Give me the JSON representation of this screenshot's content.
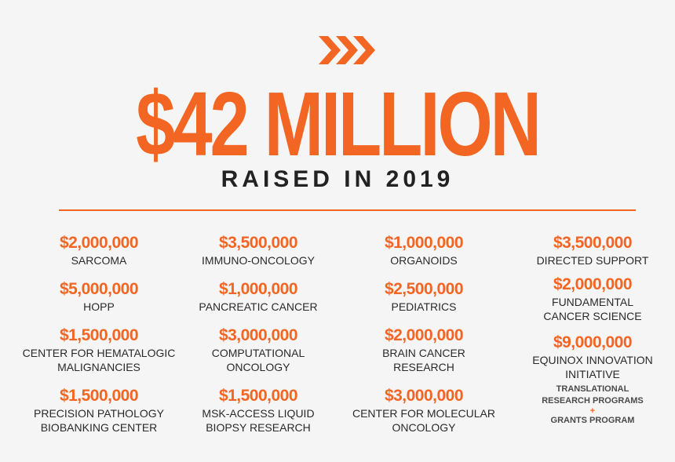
{
  "header": {
    "headline": "$42 MILLION",
    "subheadline": "RAISED IN 2019",
    "accent_color": "#f26522"
  },
  "columns": [
    [
      {
        "amount": "$2,000,000",
        "label": "SARCOMA"
      },
      {
        "amount": "$5,000,000",
        "label": "HOPP"
      },
      {
        "amount": "$1,500,000",
        "label_lines": [
          "CENTER FOR HEMATALOGIC",
          "MALIGNANCIES"
        ]
      },
      {
        "amount": "$1,500,000",
        "label_lines": [
          "PRECISION PATHOLOGY",
          "BIOBANKING CENTER"
        ]
      }
    ],
    [
      {
        "amount": "$3,500,000",
        "label": "IMMUNO-ONCOLOGY"
      },
      {
        "amount": "$1,000,000",
        "label": "PANCREATIC CANCER"
      },
      {
        "amount": "$3,000,000",
        "label_lines": [
          "COMPUTATIONAL",
          "ONCOLOGY"
        ]
      },
      {
        "amount": "$1,500,000",
        "label_lines": [
          "MSK-ACCESS LIQUID",
          "BIOPSY RESEARCH"
        ]
      }
    ],
    [
      {
        "amount": "$1,000,000",
        "label": "ORGANOIDS"
      },
      {
        "amount": "$2,500,000",
        "label": "PEDIATRICS"
      },
      {
        "amount": "$2,000,000",
        "label_lines": [
          "BRAIN CANCER",
          "RESEARCH"
        ]
      },
      {
        "amount": "$3,000,000",
        "label_lines": [
          "CENTER FOR MOLECULAR",
          "ONCOLOGY"
        ]
      }
    ],
    [
      {
        "amount": "$3,500,000",
        "label": "DIRECTED SUPPORT"
      },
      {
        "amount": "$2,000,000",
        "label_lines": [
          "FUNDAMENTAL",
          "CANCER SCIENCE"
        ]
      },
      {
        "amount": "$9,000,000",
        "label_lines": [
          "EQUINOX INNOVATION",
          "INITIATIVE"
        ]
      }
    ]
  ],
  "footnote": {
    "line1": "TRANSLATIONAL",
    "line2": "RESEARCH PROGRAMS",
    "plus": "+",
    "line3": "GRANTS PROGRAM"
  }
}
